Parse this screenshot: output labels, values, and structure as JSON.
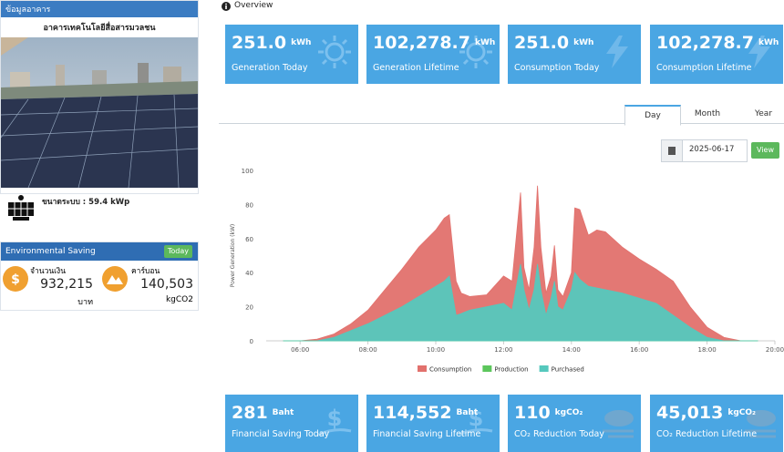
{
  "building_panel": {
    "header": "ข้อมูลอาคาร",
    "name": "อาคารเทคโนโลยีสื่อสารมวลชน",
    "system_size": "ขนาดระบบ : 59.4 kWp"
  },
  "environmental_saving": {
    "title": "Environmental Saving",
    "period_button": "Today",
    "items": [
      {
        "label": "จำนวนเงิน",
        "value": "932,215",
        "unit": "บาท"
      },
      {
        "label": "คาร์บอน",
        "value": "140,503",
        "unit": "kgCO2"
      }
    ]
  },
  "overview": {
    "title": "Overview",
    "cards": [
      {
        "value": "251.0",
        "unit": "kWh",
        "label": "Generation Today"
      },
      {
        "value": "102,278.7",
        "unit": "kWh",
        "label": "Generation Lifetime"
      },
      {
        "value": "251.0",
        "unit": "kWh",
        "label": "Consumption Today"
      },
      {
        "value": "102,278.7",
        "unit": "kWh",
        "label": "Consumption Lifetime"
      }
    ]
  },
  "tabs": [
    "Day",
    "Month",
    "Year"
  ],
  "date_picker": {
    "date": "2025-06-17",
    "button": "View"
  },
  "savings_cards": [
    {
      "value": "281",
      "unit": "Baht",
      "label": "Financial Saving Today"
    },
    {
      "value": "114,552",
      "unit": "Baht",
      "label": "Financial Saving Lifetime"
    },
    {
      "value": "110",
      "unit": "kgCO₂",
      "label": "CO₂ Reduction Today"
    },
    {
      "value": "45,013",
      "unit": "kgCO₂",
      "label": "CO₂ Reduction Lifetime"
    }
  ],
  "chart_data": {
    "type": "area",
    "y_label": "Power Generation (kW)",
    "x": [
      5.5,
      6,
      6.5,
      7,
      7.5,
      8,
      8.5,
      9,
      9.5,
      10,
      10.25,
      10.4,
      10.6,
      10.75,
      11,
      11.5,
      12,
      12.25,
      12.5,
      12.6,
      12.75,
      12.9,
      13,
      13.1,
      13.25,
      13.4,
      13.5,
      13.6,
      13.75,
      14,
      14.1,
      14.25,
      14.5,
      14.75,
      15,
      15.5,
      16,
      16.5,
      17,
      17.5,
      18,
      18.5,
      19,
      19.5
    ],
    "series": [
      {
        "name": "Consumption",
        "color": "#e2716d",
        "values": [
          0,
          0,
          1,
          4,
          10,
          18,
          30,
          42,
          55,
          65,
          72,
          74,
          35,
          28,
          26,
          27,
          38,
          35,
          87,
          43,
          30,
          55,
          91,
          55,
          28,
          38,
          56,
          30,
          26,
          40,
          78,
          77,
          62,
          65,
          64,
          55,
          48,
          42,
          35,
          20,
          8,
          2,
          0,
          0
        ]
      },
      {
        "name": "Production",
        "color": "#5cc65c",
        "values": [
          0,
          0,
          0,
          0,
          0,
          0,
          0,
          0,
          0,
          0,
          0,
          0,
          0,
          0,
          0,
          0,
          0,
          0,
          0,
          0,
          0,
          0,
          0,
          0,
          0,
          0,
          0,
          0,
          0,
          0,
          0,
          0,
          0,
          0,
          0,
          0,
          0,
          0,
          0,
          0,
          0,
          0,
          0,
          0
        ]
      },
      {
        "name": "Purchased",
        "color": "#55c8bd",
        "values": [
          0,
          0,
          0,
          2,
          6,
          10,
          15,
          20,
          26,
          32,
          35,
          38,
          15,
          16,
          18,
          20,
          22,
          18,
          45,
          30,
          18,
          30,
          45,
          30,
          15,
          25,
          35,
          20,
          18,
          30,
          40,
          36,
          32,
          31,
          30,
          28,
          25,
          22,
          15,
          8,
          2,
          0,
          0,
          0
        ]
      }
    ],
    "xlim": [
      5,
      20
    ],
    "xticks": [
      {
        "value": 6,
        "label": "06:00"
      },
      {
        "value": 8,
        "label": "08:00"
      },
      {
        "value": 10,
        "label": "10:00"
      },
      {
        "value": 12,
        "label": "12:00"
      },
      {
        "value": 14,
        "label": "14:00"
      },
      {
        "value": 16,
        "label": "16:00"
      },
      {
        "value": 18,
        "label": "18:00"
      },
      {
        "value": 20,
        "label": "20:00"
      }
    ],
    "ylim": [
      0,
      100
    ],
    "yticks": [
      0,
      20,
      40,
      60,
      80,
      100
    ],
    "grid": false,
    "legend": "bottom"
  }
}
